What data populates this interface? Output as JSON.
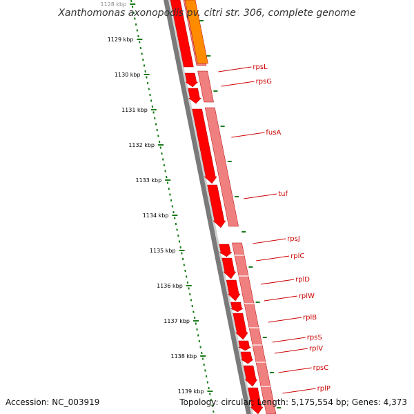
{
  "title": "Xanthomonas axonopodis pv. citri str. 306, complete genome",
  "accession": "Accession: NC_003919",
  "summary": "Topology: circular; Length: 5,175,554 bp; Genes: 4,373",
  "kbp_labels": [
    "1128 kbp",
    "1129 kbp",
    "1130 kbp",
    "1131 kbp",
    "1132 kbp",
    "1133 kbp",
    "1134 kbp",
    "1135 kbp",
    "1136 kbp",
    "1137 kbp",
    "1138 kbp",
    "1139 kbp"
  ],
  "genes": [
    "rpsL",
    "rpsG",
    "fusA",
    "tuf",
    "rpsJ",
    "rplC",
    "rplD",
    "rplW",
    "rplB",
    "rpsS",
    "rplV",
    "rpsC",
    "rplP"
  ],
  "colors": {
    "backbone": "#7a7a7a",
    "gene_forward": "#ff0000",
    "gene_highlight": "#ff8c00",
    "cds_band": "#f08080",
    "label": "#cc0000",
    "ticks": "#1a7a1a"
  }
}
